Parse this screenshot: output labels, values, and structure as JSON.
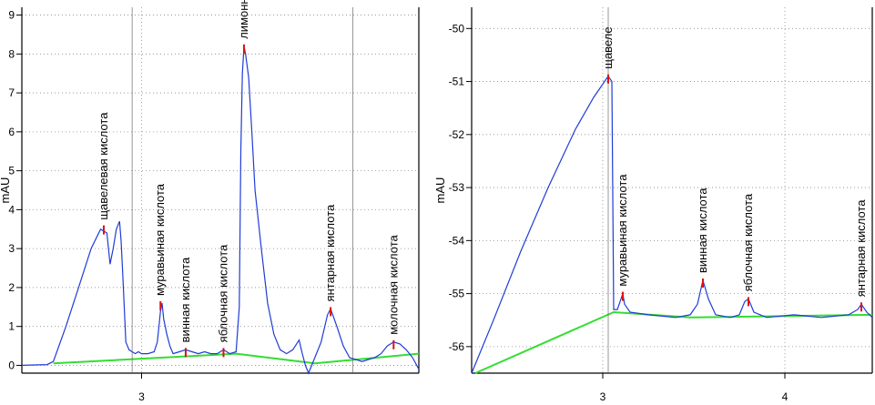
{
  "chart_data": [
    {
      "type": "line",
      "ylabel": "mAU",
      "ylim": [
        -0.2,
        9.2
      ],
      "xlim": [
        2.62,
        3.88
      ],
      "y_ticks": [
        "0",
        "1",
        "2",
        "3",
        "4",
        "5",
        "6",
        "7",
        "8",
        "9"
      ],
      "x_ticks": [
        "3"
      ],
      "x_tick_values": [
        3.0
      ],
      "markers": [
        2.97,
        3.67
      ],
      "trace_color": "#1f3cd6",
      "baseline_color": "#33dd33",
      "series": [
        {
          "points": [
            [
              2.62,
              0
            ],
            [
              2.7,
              0.02
            ],
            [
              2.72,
              0.1
            ],
            [
              2.76,
              1.0
            ],
            [
              2.8,
              2.0
            ],
            [
              2.84,
              3.0
            ],
            [
              2.87,
              3.5
            ],
            [
              2.89,
              3.4
            ],
            [
              2.9,
              2.6
            ],
            [
              2.91,
              3.0
            ],
            [
              2.92,
              3.5
            ],
            [
              2.93,
              3.7
            ],
            [
              2.935,
              3.2
            ],
            [
              2.94,
              2.4
            ],
            [
              2.95,
              0.6
            ],
            [
              2.96,
              0.4
            ],
            [
              2.97,
              0.35
            ],
            [
              2.98,
              0.3
            ],
            [
              2.99,
              0.35
            ],
            [
              3.0,
              0.3
            ],
            [
              3.02,
              0.3
            ],
            [
              3.04,
              0.35
            ],
            [
              3.05,
              0.6
            ],
            [
              3.06,
              1.4
            ],
            [
              3.065,
              1.6
            ],
            [
              3.07,
              1.2
            ],
            [
              3.08,
              0.8
            ],
            [
              3.09,
              0.5
            ],
            [
              3.1,
              0.3
            ],
            [
              3.12,
              0.35
            ],
            [
              3.14,
              0.4
            ],
            [
              3.16,
              0.35
            ],
            [
              3.18,
              0.3
            ],
            [
              3.2,
              0.35
            ],
            [
              3.22,
              0.3
            ],
            [
              3.24,
              0.3
            ],
            [
              3.26,
              0.4
            ],
            [
              3.28,
              0.3
            ],
            [
              3.3,
              0.35
            ],
            [
              3.31,
              1.5
            ],
            [
              3.315,
              5.5
            ],
            [
              3.32,
              7.5
            ],
            [
              3.325,
              8.2
            ],
            [
              3.33,
              8.0
            ],
            [
              3.34,
              7.4
            ],
            [
              3.35,
              6.0
            ],
            [
              3.36,
              4.5
            ],
            [
              3.38,
              3.0
            ],
            [
              3.4,
              1.6
            ],
            [
              3.42,
              0.8
            ],
            [
              3.44,
              0.4
            ],
            [
              3.46,
              0.3
            ],
            [
              3.48,
              0.4
            ],
            [
              3.5,
              0.65
            ],
            [
              3.51,
              0.3
            ],
            [
              3.52,
              0
            ],
            [
              3.53,
              -0.2
            ],
            [
              3.55,
              0.2
            ],
            [
              3.57,
              0.6
            ],
            [
              3.59,
              1.3
            ],
            [
              3.6,
              1.45
            ],
            [
              3.62,
              1.0
            ],
            [
              3.64,
              0.5
            ],
            [
              3.66,
              0.2
            ],
            [
              3.68,
              0.15
            ],
            [
              3.7,
              0.1
            ],
            [
              3.72,
              0.15
            ],
            [
              3.74,
              0.2
            ],
            [
              3.76,
              0.3
            ],
            [
              3.78,
              0.5
            ],
            [
              3.8,
              0.6
            ],
            [
              3.82,
              0.55
            ],
            [
              3.84,
              0.4
            ],
            [
              3.86,
              0.2
            ],
            [
              3.88,
              -0.1
            ]
          ]
        }
      ],
      "baseline": [
        [
          2.72,
          0.05
        ],
        [
          3.3,
          0.3
        ],
        [
          3.55,
          0.05
        ],
        [
          3.88,
          0.3
        ]
      ],
      "peaks": [
        {
          "label": "щавелевая кислота",
          "x": 2.88,
          "y": 3.55
        },
        {
          "label": "муравьиная кислота",
          "x": 3.06,
          "y": 1.6
        },
        {
          "label": "винная кислота",
          "x": 3.14,
          "y": 0.4
        },
        {
          "label": "яблочная кислота",
          "x": 3.26,
          "y": 0.4
        },
        {
          "label": "лимонна",
          "x": 3.325,
          "y": 8.2
        },
        {
          "label": "янтарная кислота",
          "x": 3.6,
          "y": 1.45
        },
        {
          "label": "молочная кислота",
          "x": 3.8,
          "y": 0.6
        }
      ]
    },
    {
      "type": "line",
      "ylabel": "mAU",
      "ylim": [
        -56.5,
        -49.6
      ],
      "xlim": [
        2.28,
        4.48
      ],
      "y_ticks": [
        "-50",
        "-51",
        "-52",
        "-53",
        "-54",
        "-55",
        "-56"
      ],
      "x_ticks": [
        "3",
        "4"
      ],
      "x_tick_values": [
        3.0,
        4.0
      ],
      "markers": [
        3.03
      ],
      "trace_color": "#1f3cd6",
      "baseline_color": "#33dd33",
      "series": [
        {
          "points": [
            [
              2.28,
              -56.5
            ],
            [
              2.4,
              -55.5
            ],
            [
              2.55,
              -54.2
            ],
            [
              2.7,
              -53.0
            ],
            [
              2.85,
              -51.9
            ],
            [
              2.95,
              -51.3
            ],
            [
              3.03,
              -50.9
            ],
            [
              3.05,
              -51.0
            ],
            [
              3.06,
              -55.3
            ],
            [
              3.08,
              -55.3
            ],
            [
              3.1,
              -55.1
            ],
            [
              3.11,
              -55.0
            ],
            [
              3.12,
              -55.2
            ],
            [
              3.15,
              -55.35
            ],
            [
              3.25,
              -55.4
            ],
            [
              3.4,
              -55.45
            ],
            [
              3.48,
              -55.4
            ],
            [
              3.52,
              -55.2
            ],
            [
              3.55,
              -54.75
            ],
            [
              3.58,
              -55.1
            ],
            [
              3.62,
              -55.4
            ],
            [
              3.7,
              -55.45
            ],
            [
              3.75,
              -55.4
            ],
            [
              3.78,
              -55.15
            ],
            [
              3.8,
              -55.1
            ],
            [
              3.83,
              -55.35
            ],
            [
              3.9,
              -55.45
            ],
            [
              4.05,
              -55.4
            ],
            [
              4.2,
              -55.45
            ],
            [
              4.35,
              -55.4
            ],
            [
              4.4,
              -55.3
            ],
            [
              4.42,
              -55.2
            ],
            [
              4.45,
              -55.35
            ],
            [
              4.48,
              -55.45
            ]
          ]
        }
      ],
      "baseline": [
        [
          2.3,
          -56.5
        ],
        [
          3.06,
          -55.35
        ],
        [
          3.48,
          -55.45
        ],
        [
          4.48,
          -55.4
        ]
      ],
      "peaks": [
        {
          "label": "щавеле",
          "x": 3.03,
          "y": -50.9
        },
        {
          "label": "муравьиная кислота",
          "x": 3.11,
          "y": -55.0
        },
        {
          "label": "винная кислота",
          "x": 3.55,
          "y": -54.75
        },
        {
          "label": "яблочная кислота",
          "x": 3.8,
          "y": -55.1
        },
        {
          "label": "янтарная кислота",
          "x": 4.42,
          "y": -55.2
        }
      ]
    }
  ]
}
